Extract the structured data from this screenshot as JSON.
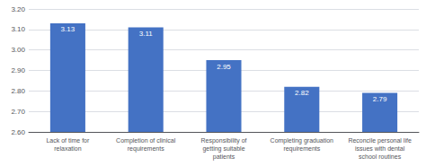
{
  "chart_data": {
    "type": "bar",
    "categories": [
      "Lack of time for\nrelaxation",
      "Completion of clinical\nrequirements",
      "Responsibility of\ngetting suitable\npatients",
      "Completing graduation\nrequirements",
      "Reconcile personal life\nissues with dental\nschool routines"
    ],
    "values": [
      3.13,
      3.11,
      2.95,
      2.82,
      2.79
    ],
    "color": "#4472c4",
    "ylim": [
      2.6,
      3.2
    ],
    "yticks": [
      {
        "value": 2.6,
        "label": "2.60"
      },
      {
        "value": 2.7,
        "label": "2.70"
      },
      {
        "value": 2.8,
        "label": "2.80"
      },
      {
        "value": 2.9,
        "label": "2.90"
      },
      {
        "value": 3.0,
        "label": "3.00"
      },
      {
        "value": 3.1,
        "label": "3.10"
      },
      {
        "value": 3.2,
        "label": "3.20"
      }
    ],
    "grid": true,
    "data_labels": true
  }
}
